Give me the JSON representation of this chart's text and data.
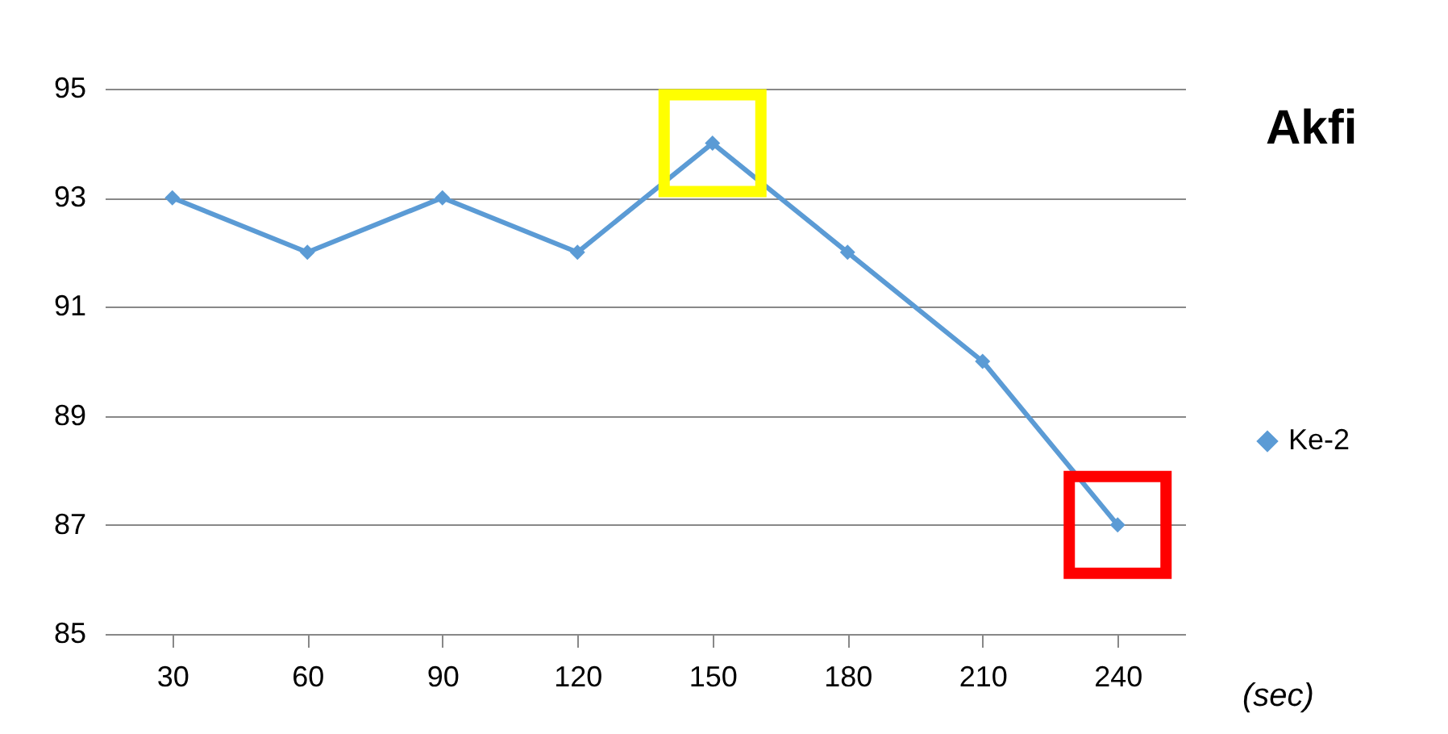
{
  "chart_data": {
    "type": "line",
    "title": "Akfi",
    "xlabel": "(sec)",
    "categories": [
      "30",
      "60",
      "90",
      "120",
      "150",
      "180",
      "210",
      "240"
    ],
    "series": [
      {
        "name": "Ke-2",
        "color": "#5b9bd5",
        "values": [
          93,
          92,
          93,
          92,
          94,
          92,
          90,
          87
        ],
        "marker": "diamond"
      }
    ],
    "ylim": [
      85,
      95
    ],
    "yticks": [
      85,
      87,
      89,
      91,
      93,
      95
    ],
    "grid": "y",
    "legend": "right"
  }
}
